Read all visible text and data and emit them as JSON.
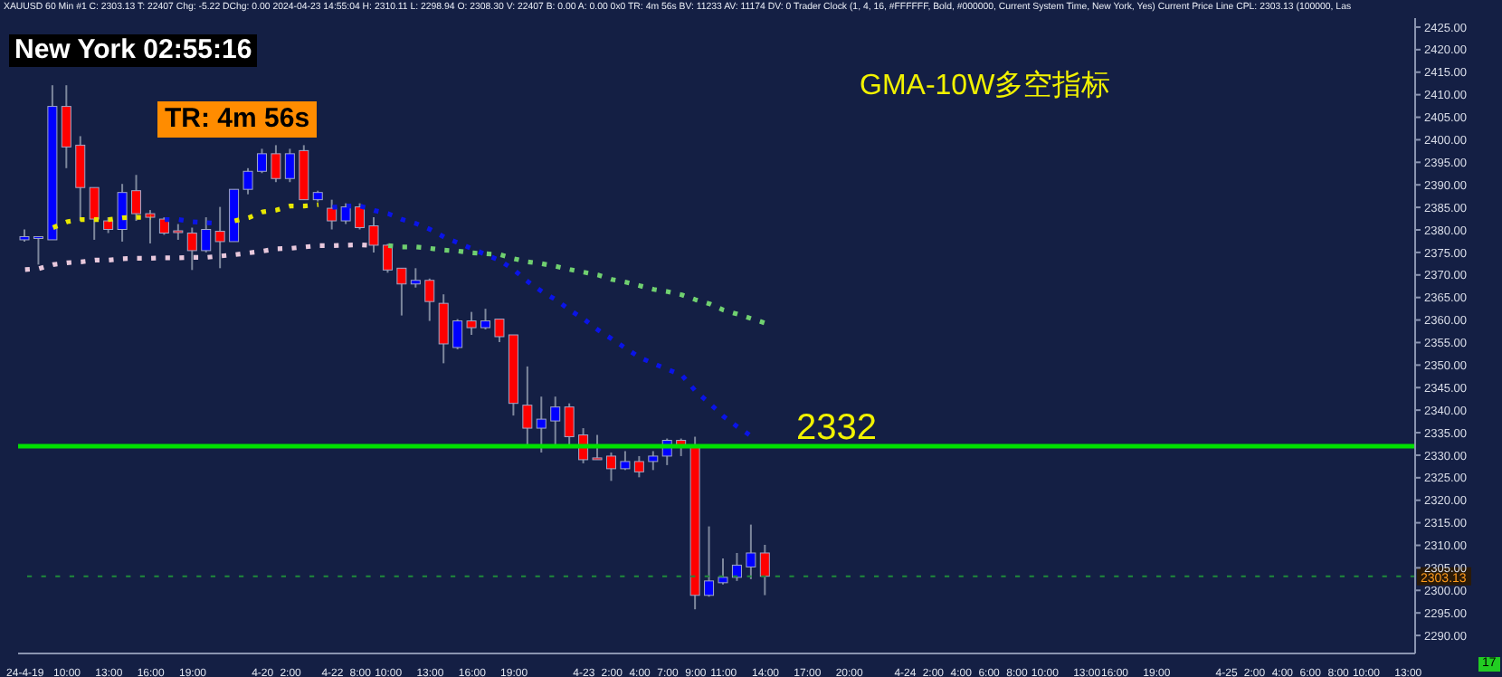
{
  "chart_data": {
    "type": "candlestick",
    "title": "GMA-10W多空指标",
    "categories": [
      "24-4-19",
      null,
      null,
      "10:00",
      null,
      null,
      "13:00",
      null,
      null,
      "16:00",
      null,
      null,
      "19:00",
      null,
      null,
      null,
      null,
      "4-20",
      null,
      "2:00",
      null,
      null,
      "4-22",
      null,
      "8:00",
      null,
      "10:00",
      null,
      null,
      "13:00",
      null,
      null,
      "16:00",
      null,
      null,
      "19:00",
      null,
      null,
      null,
      null,
      "4-23",
      null,
      "2:00",
      null,
      "4:00",
      null,
      "7:00",
      null,
      "9:00",
      null,
      "11:00",
      null,
      null,
      "14:00",
      null,
      null,
      "17:00",
      null,
      null,
      "20:00",
      null,
      null,
      null,
      "4-24",
      null,
      "2:00",
      null,
      "4:00",
      null,
      "6:00",
      null,
      "8:00",
      null,
      "10:00",
      null,
      null,
      "13:00",
      null,
      "16:00",
      null,
      null,
      "19:00",
      null,
      null,
      null,
      null,
      "4-25",
      null,
      "2:00",
      null,
      "4:00",
      null,
      "6:00",
      null,
      "8:00",
      null,
      "10:00",
      null,
      null,
      "13:00"
    ],
    "ohlc": [
      [
        2377.8,
        2380.1,
        2377.4,
        2378.5
      ],
      [
        2378.1,
        2378.5,
        2372.3,
        2378.5
      ],
      [
        2377.8,
        2412.1,
        2377.8,
        2407.4
      ],
      [
        2407.4,
        2412.1,
        2393.7,
        2398.4
      ],
      [
        2398.8,
        2400.8,
        2382.0,
        2389.4
      ],
      [
        2389.4,
        2389.4,
        2377.8,
        2382.4
      ],
      [
        2382.0,
        2382.8,
        2379.3,
        2380.1
      ],
      [
        2380.1,
        2390.2,
        2377.4,
        2388.3
      ],
      [
        2388.7,
        2392.2,
        2382.0,
        2383.6
      ],
      [
        2383.6,
        2384.4,
        2377.0,
        2382.8
      ],
      [
        2382.4,
        2382.8,
        2378.9,
        2379.3
      ],
      [
        2379.8,
        2381.3,
        2377.8,
        2379.6
      ],
      [
        2379.3,
        2380.5,
        2371.1,
        2375.4
      ],
      [
        2375.4,
        2382.8,
        2375.0,
        2380.1
      ],
      [
        2379.7,
        2385.1,
        2371.5,
        2377.4
      ],
      [
        2377.4,
        2389.0,
        2377.4,
        2389.0
      ],
      [
        2389.0,
        2393.7,
        2387.9,
        2393.0
      ],
      [
        2393.0,
        2398.0,
        2392.6,
        2396.9
      ],
      [
        2396.9,
        2398.8,
        2390.6,
        2391.4
      ],
      [
        2391.4,
        2398.0,
        2390.6,
        2396.9
      ],
      [
        2397.6,
        2398.8,
        2386.7,
        2386.7
      ],
      [
        2386.7,
        2388.7,
        2386.3,
        2388.3
      ],
      [
        2384.8,
        2386.7,
        2380.1,
        2382.0
      ],
      [
        2382.0,
        2385.9,
        2381.3,
        2385.1
      ],
      [
        2385.1,
        2385.9,
        2380.1,
        2380.5
      ],
      [
        2380.9,
        2382.8,
        2375.0,
        2376.6
      ],
      [
        2376.6,
        2376.9,
        2370.5,
        2371.1
      ],
      [
        2371.5,
        2371.5,
        2361.0,
        2368.0
      ],
      [
        2368.0,
        2371.5,
        2367.2,
        2368.8
      ],
      [
        2368.8,
        2369.2,
        2359.8,
        2364.1
      ],
      [
        2363.7,
        2365.7,
        2350.4,
        2354.7
      ],
      [
        2353.9,
        2360.2,
        2353.5,
        2359.8
      ],
      [
        2359.8,
        2361.8,
        2356.7,
        2358.3
      ],
      [
        2358.3,
        2362.5,
        2357.9,
        2359.8
      ],
      [
        2360.2,
        2360.2,
        2355.1,
        2356.3
      ],
      [
        2356.7,
        2356.7,
        2338.8,
        2341.5
      ],
      [
        2341.1,
        2349.7,
        2332.1,
        2336.0
      ],
      [
        2336.0,
        2343.0,
        2330.6,
        2338.0
      ],
      [
        2337.6,
        2343.0,
        2332.1,
        2340.7
      ],
      [
        2340.7,
        2341.5,
        2332.1,
        2334.1
      ],
      [
        2334.5,
        2336.0,
        2328.2,
        2329.0
      ],
      [
        2329.4,
        2334.5,
        2329.0,
        2329.3
      ],
      [
        2329.8,
        2330.6,
        2324.3,
        2327.0
      ],
      [
        2327.0,
        2330.9,
        2326.7,
        2328.6
      ],
      [
        2328.6,
        2329.8,
        2325.1,
        2326.3
      ],
      [
        2328.6,
        2330.9,
        2326.7,
        2329.8
      ],
      [
        2329.8,
        2333.7,
        2327.8,
        2333.3
      ],
      [
        2333.3,
        2333.7,
        2329.8,
        2332.1
      ],
      [
        2332.1,
        2334.1,
        2295.8,
        2298.9
      ],
      [
        2298.9,
        2314.2,
        2298.6,
        2302.1
      ],
      [
        2301.7,
        2307.1,
        2301.3,
        2302.9
      ],
      [
        2302.9,
        2308.3,
        2302.1,
        2305.6
      ],
      [
        2305.2,
        2314.6,
        2302.5,
        2308.3
      ],
      [
        2308.3,
        2310.11,
        2298.94,
        2303.13
      ],
      null,
      null,
      null,
      null,
      null,
      null,
      null,
      null,
      null,
      null,
      null,
      null,
      null,
      null,
      null,
      null,
      null,
      null,
      null,
      null,
      null,
      null,
      null,
      null,
      null,
      null,
      null,
      null,
      null,
      null,
      null,
      null,
      null,
      null,
      null,
      null,
      null,
      null,
      null,
      null,
      null,
      null,
      null,
      null,
      null,
      null
    ],
    "colors": [
      "#0000ff",
      "#0000ff",
      "#0000ff",
      "#ff0000",
      "#ff0000",
      "#ff0000",
      "#ff0000",
      "#0000ff",
      "#ff0000",
      "#ff0000",
      "#ff0000",
      "#ff0000",
      "#ff0000",
      "#0000ff",
      "#ff0000",
      "#0000ff",
      "#0000ff",
      "#0000ff",
      "#ff0000",
      "#0000ff",
      "#ff0000",
      "#0000ff",
      "#ff0000",
      "#0000ff",
      "#ff0000",
      "#ff0000",
      "#ff0000",
      "#ff0000",
      "#0000ff",
      "#ff0000",
      "#ff0000",
      "#0000ff",
      "#ff0000",
      "#0000ff",
      "#ff0000",
      "#ff0000",
      "#ff0000",
      "#0000ff",
      "#0000ff",
      "#ff0000",
      "#ff0000",
      "#ff0000",
      "#ff0000",
      "#0000ff",
      "#ff0000",
      "#0000ff",
      "#0000ff",
      "#ff0000",
      "#ff0000",
      "#0000ff",
      "#0000ff",
      "#0000ff",
      "#0000ff",
      "#ff0000",
      null,
      null,
      null,
      null,
      null,
      null,
      null,
      null,
      null,
      null,
      null,
      null,
      null,
      null,
      null,
      null,
      null,
      null,
      null,
      null,
      null,
      null,
      null,
      null,
      null,
      null,
      null,
      null,
      null,
      null,
      null,
      null,
      null,
      null,
      null,
      null,
      null,
      null,
      null,
      null,
      null,
      null,
      null,
      null,
      null,
      null
    ],
    "series": [
      {
        "type": "line",
        "color": "#e8e800",
        "line_style": "dotted",
        "values": [
          null,
          null,
          2380.5,
          2381.8,
          2382.3,
          2382.3,
          2382.3,
          2382.7,
          2382.8,
          2382.8,
          null,
          null,
          null,
          null,
          null,
          2382.0,
          2382.7,
          2384.0,
          2384.4,
          2385.3,
          2385.3,
          2385.6,
          null,
          null,
          null,
          null,
          null,
          null,
          null,
          null,
          null,
          null,
          null,
          null,
          null,
          null,
          null,
          null,
          null,
          null,
          null,
          null,
          null,
          null,
          null,
          null,
          null,
          null,
          null,
          null,
          null,
          null,
          null,
          null,
          null,
          null,
          null,
          null,
          null,
          null,
          null,
          null,
          null,
          null,
          null,
          null,
          null,
          null,
          null,
          null,
          null,
          null,
          null,
          null,
          null,
          null,
          null,
          null,
          null,
          null,
          null,
          null,
          null,
          null,
          null,
          null,
          null,
          null,
          null,
          null,
          null,
          null,
          null,
          null,
          null,
          null,
          null,
          null,
          null,
          null
        ]
      },
      {
        "type": "line",
        "color": "#0a14e6",
        "line_style": "dotted",
        "values": [
          null,
          null,
          null,
          null,
          null,
          null,
          null,
          null,
          null,
          null,
          2382.3,
          2382.3,
          2381.8,
          2381.6,
          2381.4,
          null,
          null,
          null,
          null,
          null,
          null,
          null,
          2385.0,
          2385.3,
          2385.3,
          2384.3,
          2383.6,
          2382.3,
          2381.4,
          2380.1,
          2378.4,
          2377.1,
          2375.8,
          2374.5,
          2373.2,
          2371.1,
          2368.5,
          2366.3,
          2364.5,
          2362.2,
          2360.2,
          2357.8,
          2355.8,
          2353.7,
          2351.7,
          2350.3,
          2349.0,
          2347.8,
          2344.2,
          2341.5,
          2338.6,
          2336.3,
          2334.2,
          null,
          null,
          null,
          null,
          null,
          null,
          null,
          null,
          null,
          null,
          null,
          null,
          null,
          null,
          null,
          null,
          null,
          null,
          null,
          null,
          null,
          null,
          null,
          null,
          null,
          null,
          null,
          null,
          null,
          null,
          null,
          null,
          null,
          null,
          null,
          null,
          null,
          null,
          null,
          null,
          null,
          null,
          null,
          null,
          null,
          null,
          null
        ]
      },
      {
        "type": "line",
        "color": "#e8c8dc",
        "line_style": "dotted",
        "values": [
          2371.2,
          2371.4,
          2372.3,
          2372.7,
          2372.9,
          2373.3,
          2373.3,
          2373.6,
          2373.7,
          2373.7,
          2373.8,
          2373.8,
          2373.9,
          2373.9,
          2374.2,
          2374.5,
          2374.9,
          2375.3,
          2375.8,
          2375.9,
          2376.2,
          2376.5,
          2376.5,
          2376.6,
          2376.7,
          2376.5,
          null,
          null,
          null,
          null,
          null,
          null,
          null,
          null,
          null,
          null,
          null,
          null,
          null,
          null,
          null,
          null,
          null,
          null,
          null,
          null,
          null,
          null,
          null,
          null,
          null,
          null,
          null,
          null,
          null,
          null,
          null,
          null,
          null,
          null,
          null,
          null,
          null,
          null,
          null,
          null,
          null,
          null,
          null,
          null,
          null,
          null,
          null,
          null,
          null,
          null,
          null,
          null,
          null,
          null,
          null,
          null,
          null,
          null,
          null,
          null,
          null,
          null,
          null,
          null,
          null,
          null,
          null,
          null,
          null,
          null,
          null,
          null,
          null,
          null
        ]
      },
      {
        "type": "line",
        "color": "#70d070",
        "line_style": "dotted",
        "values": [
          null,
          null,
          null,
          null,
          null,
          null,
          null,
          null,
          null,
          null,
          null,
          null,
          null,
          null,
          null,
          null,
          null,
          null,
          null,
          null,
          null,
          null,
          null,
          null,
          null,
          null,
          2376.5,
          2376.2,
          2376.2,
          2375.9,
          2375.5,
          2375.3,
          2374.9,
          2374.7,
          2374.5,
          2373.6,
          2372.9,
          2372.5,
          2371.9,
          2371.2,
          2370.6,
          2370.0,
          2369.0,
          2368.4,
          2367.6,
          2366.8,
          2366.3,
          2365.6,
          2364.5,
          2363.6,
          2362.2,
          2361.3,
          2360.3,
          2359.3,
          null,
          null,
          null,
          null,
          null,
          null,
          null,
          null,
          null,
          null,
          null,
          null,
          null,
          null,
          null,
          null,
          null,
          null,
          null,
          null,
          null,
          null,
          null,
          null,
          null,
          null,
          null,
          null,
          null,
          null,
          null,
          null,
          null,
          null,
          null,
          null,
          null,
          null,
          null,
          null,
          null,
          null,
          null,
          null,
          null,
          null
        ]
      }
    ],
    "ylim": [
      2286,
      2427
    ],
    "yticks": [
      {
        "value": 2290,
        "label": "2290.00"
      },
      {
        "value": 2295,
        "label": "2295.00"
      },
      {
        "value": 2300,
        "label": "2300.00"
      },
      {
        "value": 2305,
        "label": "2305.00"
      },
      {
        "value": 2310,
        "label": "2310.00"
      },
      {
        "value": 2315,
        "label": "2315.00"
      },
      {
        "value": 2320,
        "label": "2320.00"
      },
      {
        "value": 2325,
        "label": "2325.00"
      },
      {
        "value": 2330,
        "label": "2330.00"
      },
      {
        "value": 2335,
        "label": "2335.00"
      },
      {
        "value": 2340,
        "label": "2340.00"
      },
      {
        "value": 2345,
        "label": "2345.00"
      },
      {
        "value": 2350,
        "label": "2350.00"
      },
      {
        "value": 2355,
        "label": "2355.00"
      },
      {
        "value": 2360,
        "label": "2360.00"
      },
      {
        "value": 2365,
        "label": "2365.00"
      },
      {
        "value": 2370,
        "label": "2370.00"
      },
      {
        "value": 2375,
        "label": "2375.00"
      },
      {
        "value": 2380,
        "label": "2380.00"
      },
      {
        "value": 2385,
        "label": "2385.00"
      },
      {
        "value": 2390,
        "label": "2390.00"
      },
      {
        "value": 2395,
        "label": "2395.00"
      },
      {
        "value": 2400,
        "label": "2400.00"
      },
      {
        "value": 2405,
        "label": "2405.00"
      },
      {
        "value": 2410,
        "label": "2410.00"
      },
      {
        "value": 2415,
        "label": "2415.00"
      },
      {
        "value": 2420,
        "label": "2420.00"
      },
      {
        "value": 2425,
        "label": "2425.00"
      }
    ],
    "ref_lines": [
      {
        "axis": "y",
        "value": 2332,
        "label": "2332",
        "color": "#00e000",
        "line_style": "solid"
      },
      {
        "axis": "y",
        "value": 2303.13,
        "label": "2303.13",
        "color": "#1f8a3a",
        "line_style": "dotted"
      }
    ],
    "annotations": [
      "XAUUSD  60 Min  #1  C: 2303.13  T: 22407  Chg: -5.22  DChg: 0.00  2024-04-23 14:55:04  H: 2310.11  L: 2298.94  O: 2308.30  V: 22407  B: 0.00  A: 0.00  0x0  TR: 4m 56s  BV: 11233  AV: 11174  DV: 0  Trader Clock  (1, 4, 16, #FFFFFF, Bold, #000000, Current System Time, New York, Yes)  Current Price Line  CPL: 2303.13  (100000, Las",
      "New York 02:55:16",
      "TR: 4m 56s",
      "17"
    ],
    "grid": false,
    "legend": false
  }
}
